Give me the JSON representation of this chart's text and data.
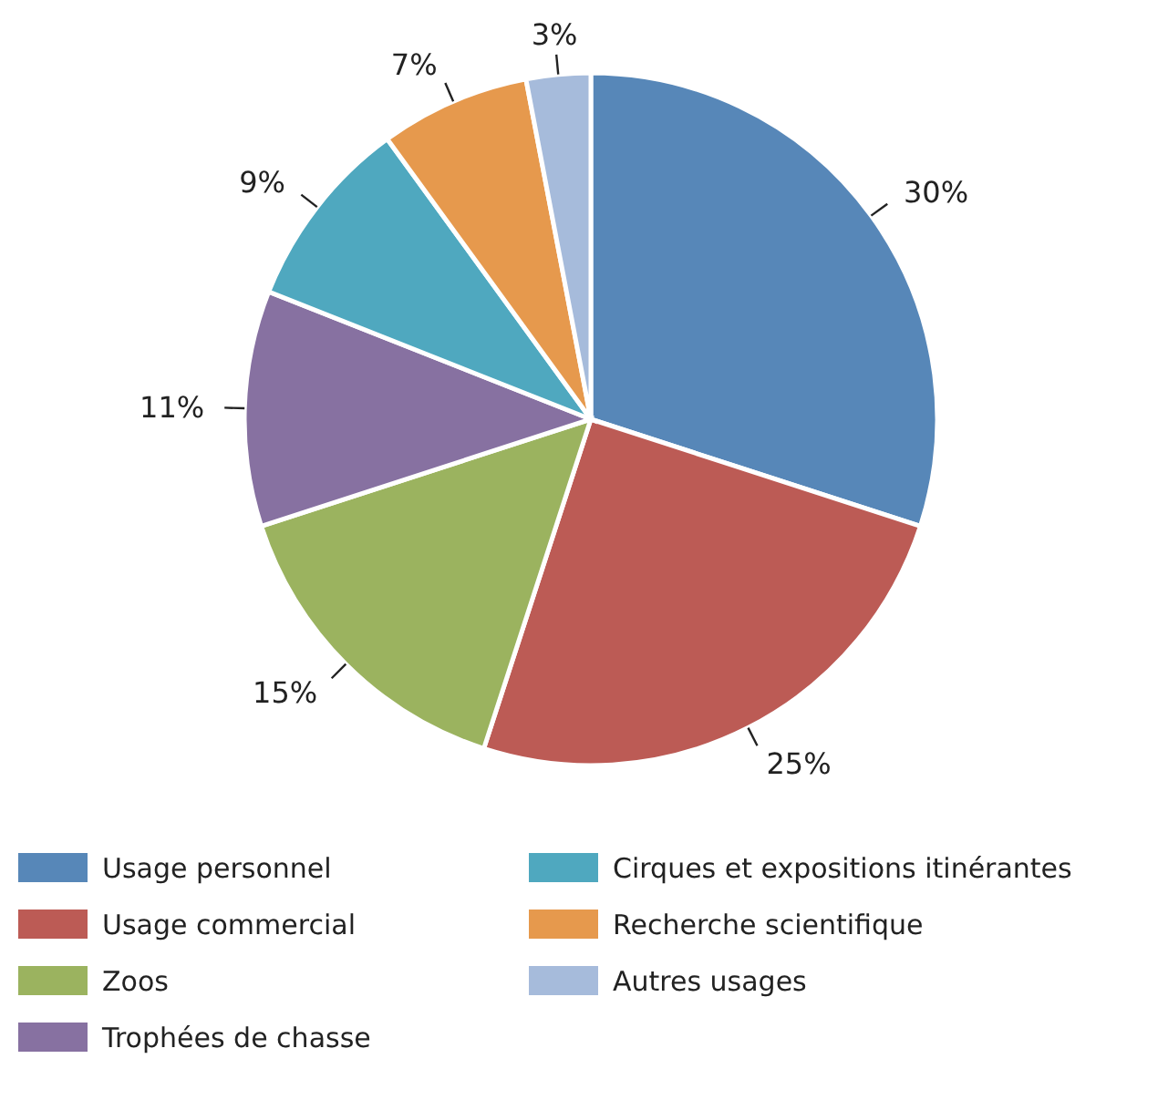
{
  "chart_data": {
    "type": "pie",
    "categories": [
      "Usage personnel",
      "Usage commercial",
      "Zoos",
      "Trophées de chasse",
      "Cirques et expositions itinérantes",
      "Recherche scientifique",
      "Autres usages"
    ],
    "values": [
      30,
      25,
      15,
      11,
      9,
      7,
      3
    ],
    "colors": [
      "#5787b8",
      "#bc5b55",
      "#9bb35f",
      "#8771a1",
      "#4fa8bf",
      "#e6994d",
      "#a6bbdb"
    ],
    "value_labels": [
      "30%",
      "25%",
      "15%",
      "11%",
      "9%",
      "7%",
      "3%"
    ],
    "legend": "bottom"
  }
}
